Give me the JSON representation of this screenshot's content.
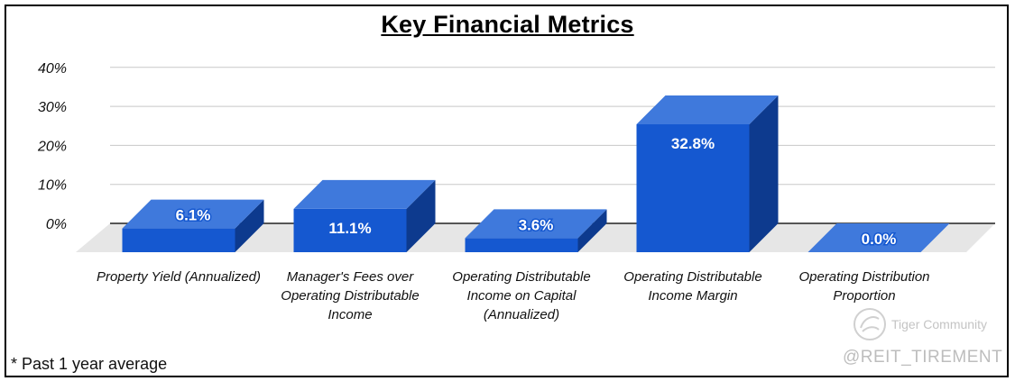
{
  "chart_data": {
    "type": "bar",
    "title": "Key Financial Metrics",
    "categories": [
      "Property Yield (Annualized)",
      "Manager's Fees over Operating Distributable Income",
      "Operating Distributable Income on Capital (Annualized)",
      "Operating Distributable Income Margin",
      "Operating Distribution Proportion"
    ],
    "category_lines": [
      [
        "Property Yield (Annualized)"
      ],
      [
        "Manager's Fees over",
        "Operating Distributable",
        "Income"
      ],
      [
        "Operating Distributable",
        "Income on Capital",
        "(Annualized)"
      ],
      [
        "Operating Distributable",
        "Income Margin"
      ],
      [
        "Operating Distribution",
        "Proportion"
      ]
    ],
    "values": [
      6.1,
      11.1,
      3.6,
      32.8,
      0.0
    ],
    "data_labels": [
      "6.1%",
      "11.1%",
      "3.6%",
      "32.8%",
      "0.0%"
    ],
    "y_ticks": [
      "40%",
      "30%",
      "20%",
      "10%",
      "0%"
    ],
    "ylim": [
      0,
      40
    ],
    "grid": true,
    "style": "3d-column",
    "colors": {
      "bar_front": "#1558d0",
      "bar_top": "#3f79dc",
      "bar_side": "#0d3a8e",
      "floor": "#e6e6e6",
      "grid": "#c8c8c8",
      "axis": "#222222"
    }
  },
  "footnote": "* Past 1 year average",
  "watermark": {
    "brand": "Tiger Community",
    "handle": "@REIT_TIREMENT"
  }
}
